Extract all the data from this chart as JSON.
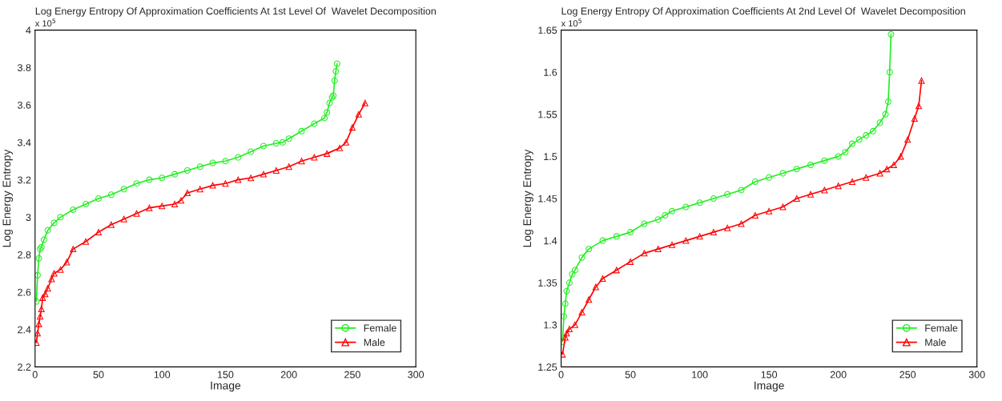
{
  "chart_data": [
    {
      "type": "line",
      "title": "Log Energy Entropy Of Approximation Coefficients At 1st Level Of  Wavelet Decomposition",
      "xlabel": "Image",
      "ylabel": "Log Energy Entropy",
      "annotations": [
        "x 10$^{5}$"
      ],
      "xlim": [
        0,
        300
      ],
      "xticks": [
        0,
        50,
        100,
        150,
        200,
        250,
        300
      ],
      "ylim": [
        2.2,
        4
      ],
      "yticks": [
        2.2,
        2.4,
        2.6,
        2.8,
        3,
        3.2,
        3.4,
        3.6,
        3.8,
        4
      ],
      "legend": "bottom right",
      "grid": false,
      "series": [
        {
          "name": "Female",
          "color": "#22ee22",
          "marker": "circle",
          "x": [
            1,
            2,
            3,
            4,
            5,
            7,
            10,
            15,
            20,
            30,
            40,
            50,
            60,
            70,
            80,
            90,
            100,
            110,
            120,
            130,
            140,
            150,
            160,
            170,
            180,
            190,
            195,
            200,
            210,
            220,
            228,
            230,
            232,
            234,
            235,
            236,
            237,
            238
          ],
          "values": [
            2.55,
            2.69,
            2.78,
            2.83,
            2.84,
            2.88,
            2.93,
            2.97,
            3.0,
            3.04,
            3.07,
            3.1,
            3.12,
            3.15,
            3.18,
            3.2,
            3.21,
            3.23,
            3.25,
            3.27,
            3.29,
            3.3,
            3.32,
            3.35,
            3.38,
            3.395,
            3.4,
            3.42,
            3.46,
            3.5,
            3.53,
            3.56,
            3.61,
            3.64,
            3.65,
            3.73,
            3.78,
            3.82
          ]
        },
        {
          "name": "Male",
          "color": "#ff0000",
          "marker": "triangle",
          "x": [
            1,
            2,
            3,
            4,
            5,
            6,
            8,
            10,
            13,
            15,
            20,
            25,
            30,
            40,
            50,
            60,
            70,
            80,
            90,
            100,
            110,
            115,
            120,
            130,
            140,
            150,
            160,
            170,
            180,
            190,
            200,
            210,
            220,
            230,
            240,
            245,
            250,
            255,
            260
          ],
          "values": [
            2.33,
            2.38,
            2.43,
            2.47,
            2.51,
            2.57,
            2.59,
            2.62,
            2.67,
            2.7,
            2.72,
            2.76,
            2.83,
            2.87,
            2.92,
            2.96,
            2.99,
            3.02,
            3.05,
            3.06,
            3.07,
            3.09,
            3.13,
            3.15,
            3.17,
            3.18,
            3.2,
            3.21,
            3.23,
            3.25,
            3.27,
            3.3,
            3.32,
            3.34,
            3.37,
            3.4,
            3.48,
            3.55,
            3.61
          ]
        }
      ]
    },
    {
      "type": "line",
      "title": "Log Energy Entropy Of Approximation Coefficients At 2nd Level Of  Wavelet Decomposition",
      "xlabel": "Image",
      "ylabel": "Log Energy Entropy",
      "annotations": [
        "x 10$^{5}$"
      ],
      "xlim": [
        0,
        300
      ],
      "xticks": [
        0,
        50,
        100,
        150,
        200,
        250,
        300
      ],
      "ylim": [
        1.25,
        1.65
      ],
      "yticks": [
        1.25,
        1.3,
        1.35,
        1.4,
        1.45,
        1.5,
        1.55,
        1.6,
        1.65
      ],
      "legend": "bottom right",
      "grid": false,
      "series": [
        {
          "name": "Female",
          "color": "#22ee22",
          "marker": "circle",
          "x": [
            1,
            2,
            3,
            4,
            6,
            8,
            10,
            15,
            20,
            30,
            40,
            50,
            60,
            70,
            75,
            80,
            90,
            100,
            110,
            120,
            130,
            140,
            150,
            160,
            170,
            180,
            190,
            200,
            205,
            210,
            215,
            220,
            225,
            230,
            234,
            236,
            237,
            238
          ],
          "values": [
            1.28,
            1.31,
            1.325,
            1.34,
            1.35,
            1.36,
            1.365,
            1.38,
            1.39,
            1.4,
            1.405,
            1.41,
            1.42,
            1.425,
            1.43,
            1.435,
            1.44,
            1.445,
            1.45,
            1.455,
            1.46,
            1.47,
            1.475,
            1.48,
            1.485,
            1.49,
            1.495,
            1.5,
            1.505,
            1.515,
            1.52,
            1.525,
            1.53,
            1.54,
            1.55,
            1.565,
            1.6,
            1.645
          ]
        },
        {
          "name": "Male",
          "color": "#ff0000",
          "marker": "triangle",
          "x": [
            1,
            3,
            4,
            6,
            10,
            15,
            20,
            25,
            30,
            40,
            50,
            60,
            70,
            80,
            90,
            100,
            110,
            120,
            130,
            140,
            150,
            160,
            170,
            180,
            190,
            200,
            210,
            220,
            230,
            235,
            240,
            245,
            250,
            255,
            258,
            260
          ],
          "values": [
            1.265,
            1.285,
            1.29,
            1.295,
            1.3,
            1.315,
            1.33,
            1.345,
            1.355,
            1.365,
            1.375,
            1.385,
            1.39,
            1.395,
            1.4,
            1.405,
            1.41,
            1.415,
            1.42,
            1.43,
            1.435,
            1.44,
            1.45,
            1.455,
            1.46,
            1.465,
            1.47,
            1.475,
            1.48,
            1.485,
            1.49,
            1.5,
            1.52,
            1.545,
            1.56,
            1.59
          ]
        }
      ]
    }
  ]
}
